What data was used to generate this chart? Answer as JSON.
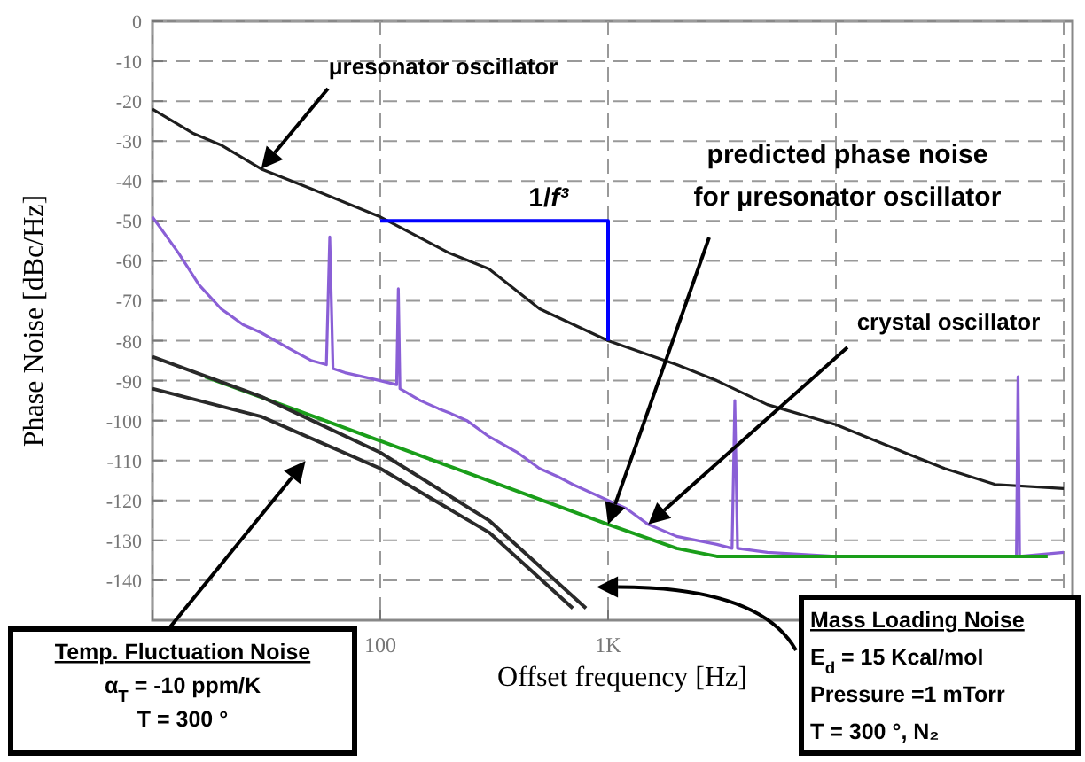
{
  "chart_data": {
    "type": "line",
    "xlabel": "Offset frequency [Hz]",
    "ylabel": "Phase Noise [dBc/Hz]",
    "log": "x",
    "xlim": [
      10,
      100000
    ],
    "xticks": [
      {
        "value": 10,
        "label": null
      },
      100,
      {
        "value": 1000,
        "label": "1K"
      },
      {
        "value": 10000,
        "label": null
      },
      {
        "value": 100000,
        "label": null
      }
    ],
    "ylim": [
      -150,
      0
    ],
    "yticks": [
      0,
      -10,
      -20,
      -30,
      -40,
      -50,
      -60,
      -70,
      -80,
      -90,
      -100,
      -110,
      -120,
      -130,
      -140
    ],
    "grid": true,
    "line_style": "solid",
    "series": [
      {
        "name": "μresonator oscillator",
        "color": "#1e1e1e",
        "x": [
          10,
          15,
          20,
          30,
          50,
          100,
          200,
          300,
          500,
          1000,
          2000,
          3000,
          5000,
          10000,
          20000,
          30000,
          50000,
          100000
        ],
        "values": [
          -22,
          -28,
          -31,
          -37,
          -42,
          -49,
          -58,
          -62,
          -72,
          -80,
          -86,
          -90,
          -96,
          -101,
          -108,
          -112,
          -116,
          -117
        ]
      },
      {
        "name": "crystal oscillator",
        "color": "#8a5fd6",
        "x": [
          10,
          13,
          16,
          20,
          25,
          30,
          40,
          50,
          58,
          60,
          62,
          70,
          100,
          118,
          120,
          122,
          150,
          180,
          200,
          240,
          300,
          400,
          500,
          600,
          700,
          1000,
          1200,
          1500,
          2000,
          3000,
          3500,
          3600,
          3700,
          5000,
          10000,
          20000,
          50000,
          62000,
          63000,
          64000,
          100000
        ],
        "values": [
          -49,
          -58,
          -66,
          -72,
          -76,
          -78,
          -82,
          -85,
          -86,
          -54,
          -87,
          -88,
          -90,
          -91,
          -67,
          -92,
          -95,
          -97,
          -98,
          -100,
          -104,
          -108,
          -112,
          -114,
          -116,
          -120,
          -122,
          -126,
          -129,
          -131,
          -132,
          -95,
          -132,
          -133,
          -134,
          -134,
          -134,
          -134,
          -89,
          -134,
          -133
        ]
      },
      {
        "name": "predicted phase noise for μresonator oscillator",
        "color": "#1a9e1a",
        "x": [
          17,
          1000,
          2000,
          3000,
          85000
        ],
        "values": [
          -89,
          -126,
          -132,
          -134,
          -134
        ]
      },
      {
        "color": "#2a2a2a",
        "x": [
          10,
          30,
          100,
          300,
          800
        ],
        "values": [
          -84,
          -94,
          -108,
          -125,
          -147
        ]
      },
      {
        "color": "#2a2a2a",
        "x": [
          10,
          30,
          100,
          300,
          700
        ],
        "values": [
          -92,
          -99,
          -112,
          -128,
          -147
        ]
      },
      {
        "color": "#0000ff",
        "x": [
          100,
          1000,
          1000
        ],
        "values": [
          -50,
          -50,
          -80
        ]
      }
    ],
    "annotations": [
      {
        "text": "1/f³",
        "x": 300,
        "y": -50
      },
      "Temp. Fluctuation Noise\nα$_{T}$ = -10 ppm/K\nT = 300 °",
      "Mass Loading Noise\nE$_{d}$ = 15 Kcal/mol\nPressure =1 mTorr\nT = 300 °, N₂"
    ]
  }
}
